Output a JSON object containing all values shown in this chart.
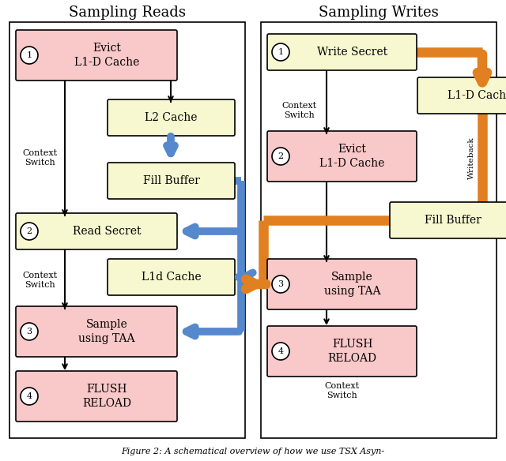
{
  "title_left": "Sampling Reads",
  "title_right": "Sampling Writes",
  "caption": "Figure 2: A schematical overview of how we use TSX Asyn-",
  "bg_color": "#ffffff",
  "pink_fill": "#f9c8c8",
  "yellow_fill": "#f8f8d0",
  "blue_color": "#5588cc",
  "orange_color": "#e08020",
  "black": "#000000"
}
